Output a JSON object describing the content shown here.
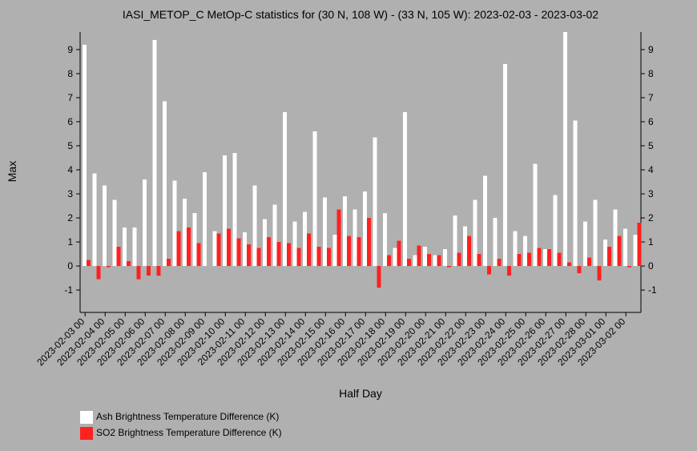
{
  "chart_data": {
    "type": "bar",
    "title": "IASI_METOP_C MetOp-C statistics for (30 N, 108 W) - (33 N, 105 W): 2023-02-03 - 2023-03-02",
    "x_label": "Half Day",
    "y_label": "Max",
    "categories": [
      "2023-02-03 00",
      null,
      "2023-02-04 00",
      null,
      "2023-02-05 00",
      null,
      "2023-02-06 00",
      null,
      "2023-02-07 00",
      null,
      "2023-02-08 00",
      null,
      "2023-02-09 00",
      null,
      "2023-02-10 00",
      null,
      "2023-02-11 00",
      null,
      "2023-02-12 00",
      null,
      "2023-02-13 00",
      null,
      "2023-02-14 00",
      null,
      "2023-02-15 00",
      null,
      "2023-02-16 00",
      null,
      "2023-02-17 00",
      null,
      "2023-02-18 00",
      null,
      "2023-02-19 00",
      null,
      "2023-02-20 00",
      null,
      "2023-02-21 00",
      null,
      "2023-02-22 00",
      null,
      "2023-02-23 00",
      null,
      "2023-02-24 00",
      null,
      "2023-02-25 00",
      null,
      "2023-02-26 00",
      null,
      "2023-02-27 00",
      null,
      "2023-02-28 00",
      null,
      "2023-03-01 00",
      null,
      "2023-03-02 00",
      null
    ],
    "series": [
      {
        "name": "Ash Brightness Temperature Difference (K)",
        "color": "#ffffff",
        "values": [
          9.2,
          3.85,
          3.35,
          2.75,
          1.6,
          1.6,
          3.6,
          9.4,
          6.85,
          3.55,
          2.8,
          2.2,
          3.9,
          1.45,
          4.6,
          4.7,
          1.4,
          3.35,
          1.95,
          2.55,
          6.4,
          1.85,
          2.25,
          5.6,
          2.85,
          1.3,
          2.9,
          2.35,
          3.1,
          5.35,
          2.2,
          0.75,
          6.4,
          0.45,
          0.8,
          0.45,
          0.7,
          2.1,
          1.65,
          2.75,
          3.75,
          2.0,
          8.4,
          1.45,
          1.25,
          4.25,
          0.7,
          2.95,
          9.73,
          6.05,
          1.85,
          2.75,
          1.1,
          2.35,
          1.55,
          1.3
        ]
      },
      {
        "name": "SO2 Brightness Temperature Difference (K)",
        "color": "#ff2020",
        "values": [
          0.25,
          -0.55,
          -0.05,
          0.8,
          0.2,
          -0.55,
          -0.4,
          -0.4,
          0.3,
          1.45,
          1.6,
          0.95,
          0.0,
          1.35,
          1.55,
          1.15,
          0.9,
          0.75,
          1.2,
          1.0,
          0.95,
          0.75,
          1.35,
          0.8,
          0.75,
          2.35,
          1.25,
          1.2,
          2.0,
          -0.9,
          0.45,
          1.05,
          0.3,
          0.85,
          0.5,
          0.45,
          -0.05,
          0.55,
          1.25,
          0.5,
          -0.35,
          0.3,
          -0.4,
          0.5,
          0.55,
          0.75,
          0.7,
          0.55,
          0.15,
          -0.3,
          0.35,
          -0.6,
          0.8,
          1.25,
          -0.05,
          1.8
        ]
      }
    ],
    "ylim": [
      -1.93,
      9.73
    ],
    "yticks": [
      -1,
      0,
      1,
      2,
      3,
      4,
      5,
      6,
      7,
      8,
      9
    ]
  }
}
